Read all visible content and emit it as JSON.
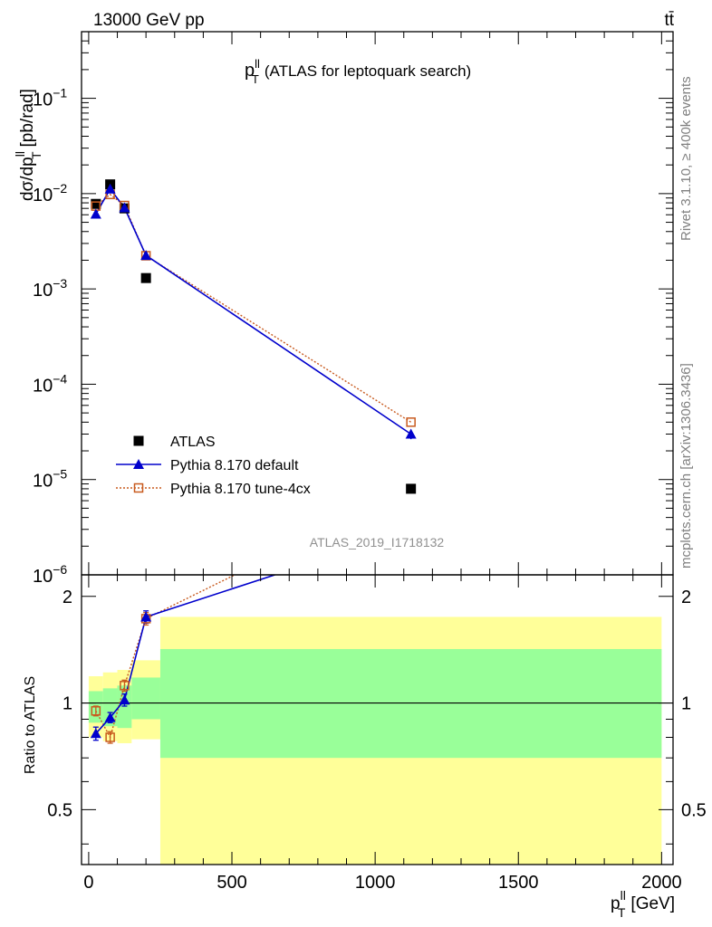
{
  "header": {
    "left": "13000 GeV pp",
    "right": "tt̄"
  },
  "side_labels": {
    "rivet": "Rivet 3.1.10, ≥ 400k events",
    "mcplots": "mcplots.cern.ch [arXiv:1306.3436]"
  },
  "watermark": "ATLAS_2019_I1718132",
  "chart_data": [
    {
      "type": "scatter",
      "panel": "main",
      "title": "p_T^ll (ATLAS for leptoquark search)",
      "title_parts": {
        "p": "p",
        "sub": "T",
        "sup": "ll",
        "rest": "(ATLAS for leptoquark search)"
      },
      "ylabel": "dσ/dp_T^ll [pb/rad]",
      "ylabel_parts": {
        "main": "dσ/dp",
        "sub": "T",
        "sup": "ll",
        "unit": "[pb/rad]"
      },
      "y_scale": "log",
      "xlim": [
        -25,
        2040
      ],
      "ylim": [
        1e-06,
        0.5
      ],
      "ytick_labels": [
        {
          "base": "10",
          "exp": "−6",
          "value": 1e-06
        },
        {
          "base": "10",
          "exp": "−5",
          "value": 1e-05
        },
        {
          "base": "10",
          "exp": "−4",
          "value": 0.0001
        },
        {
          "base": "10",
          "exp": "−3",
          "value": 0.001
        },
        {
          "base": "10",
          "exp": "−2",
          "value": 0.01
        },
        {
          "base": "10",
          "exp": "−1",
          "value": 0.1
        }
      ],
      "legend_position": "bottom-left",
      "series": [
        {
          "name": "ATLAS",
          "marker": "square",
          "color": "#000000",
          "x": [
            25,
            75,
            125,
            200,
            1125
          ],
          "y": [
            0.0078,
            0.0125,
            0.007,
            0.0013,
            8e-06
          ]
        },
        {
          "name": "Pythia 8.170 default",
          "marker": "triangle",
          "color": "#0000cc",
          "line": "solid",
          "x": [
            25,
            75,
            125,
            200,
            1125
          ],
          "y": [
            0.0061,
            0.0112,
            0.0071,
            0.00225,
            3e-05
          ],
          "yerr": [
            0,
            0,
            0,
            0,
            3.5e-06
          ]
        },
        {
          "name": "Pythia 8.170 tune-4cx",
          "marker": "open-square",
          "color": "#c85a1e",
          "line": "dotted",
          "x": [
            25,
            75,
            125,
            200,
            1125
          ],
          "y": [
            0.0074,
            0.0098,
            0.0075,
            0.00223,
            4e-05
          ]
        }
      ]
    },
    {
      "type": "scatter",
      "panel": "ratio",
      "ylabel": "Ratio to ATLAS",
      "xlabel": "p_T^ll [GeV]",
      "xlabel_parts": {
        "main": "p",
        "sub": "T",
        "sup": "ll",
        "unit": "[GeV]"
      },
      "y_scale": "log",
      "xlim": [
        -25,
        2040
      ],
      "ylim": [
        0.35,
        2.3
      ],
      "xticks": [
        0,
        500,
        1000,
        1500,
        2000
      ],
      "yticks": [
        0.5,
        1,
        2
      ],
      "ytick_labels": [
        "0.5",
        "1",
        "2"
      ],
      "reference_line": 1,
      "bands": {
        "x_edges": [
          0,
          50,
          100,
          150,
          250,
          2000
        ],
        "green_low": [
          0.88,
          0.86,
          0.85,
          0.9,
          0.7
        ],
        "green_high": [
          1.08,
          1.1,
          1.12,
          1.18,
          1.42
        ],
        "yellow_low": [
          0.8,
          0.78,
          0.77,
          0.79,
          0.35
        ],
        "yellow_high": [
          1.19,
          1.22,
          1.24,
          1.32,
          1.75
        ],
        "green_color": "#99ff99",
        "yellow_color": "#ffff99"
      },
      "series": [
        {
          "name": "Pythia 8.170 default",
          "x": [
            25,
            75,
            125,
            200,
            650
          ],
          "y": [
            0.82,
            0.91,
            1.02,
            1.75,
            2.3
          ],
          "yerr": [
            0.035,
            0.03,
            0.04,
            0.07,
            0
          ]
        },
        {
          "name": "Pythia 8.170 tune-4cx",
          "x": [
            25,
            75,
            125,
            200,
            510
          ],
          "y": [
            0.95,
            0.8,
            1.12,
            1.73,
            2.3
          ],
          "yerr": [
            0.03,
            0.03,
            0.04,
            0.07,
            0
          ]
        }
      ]
    }
  ]
}
